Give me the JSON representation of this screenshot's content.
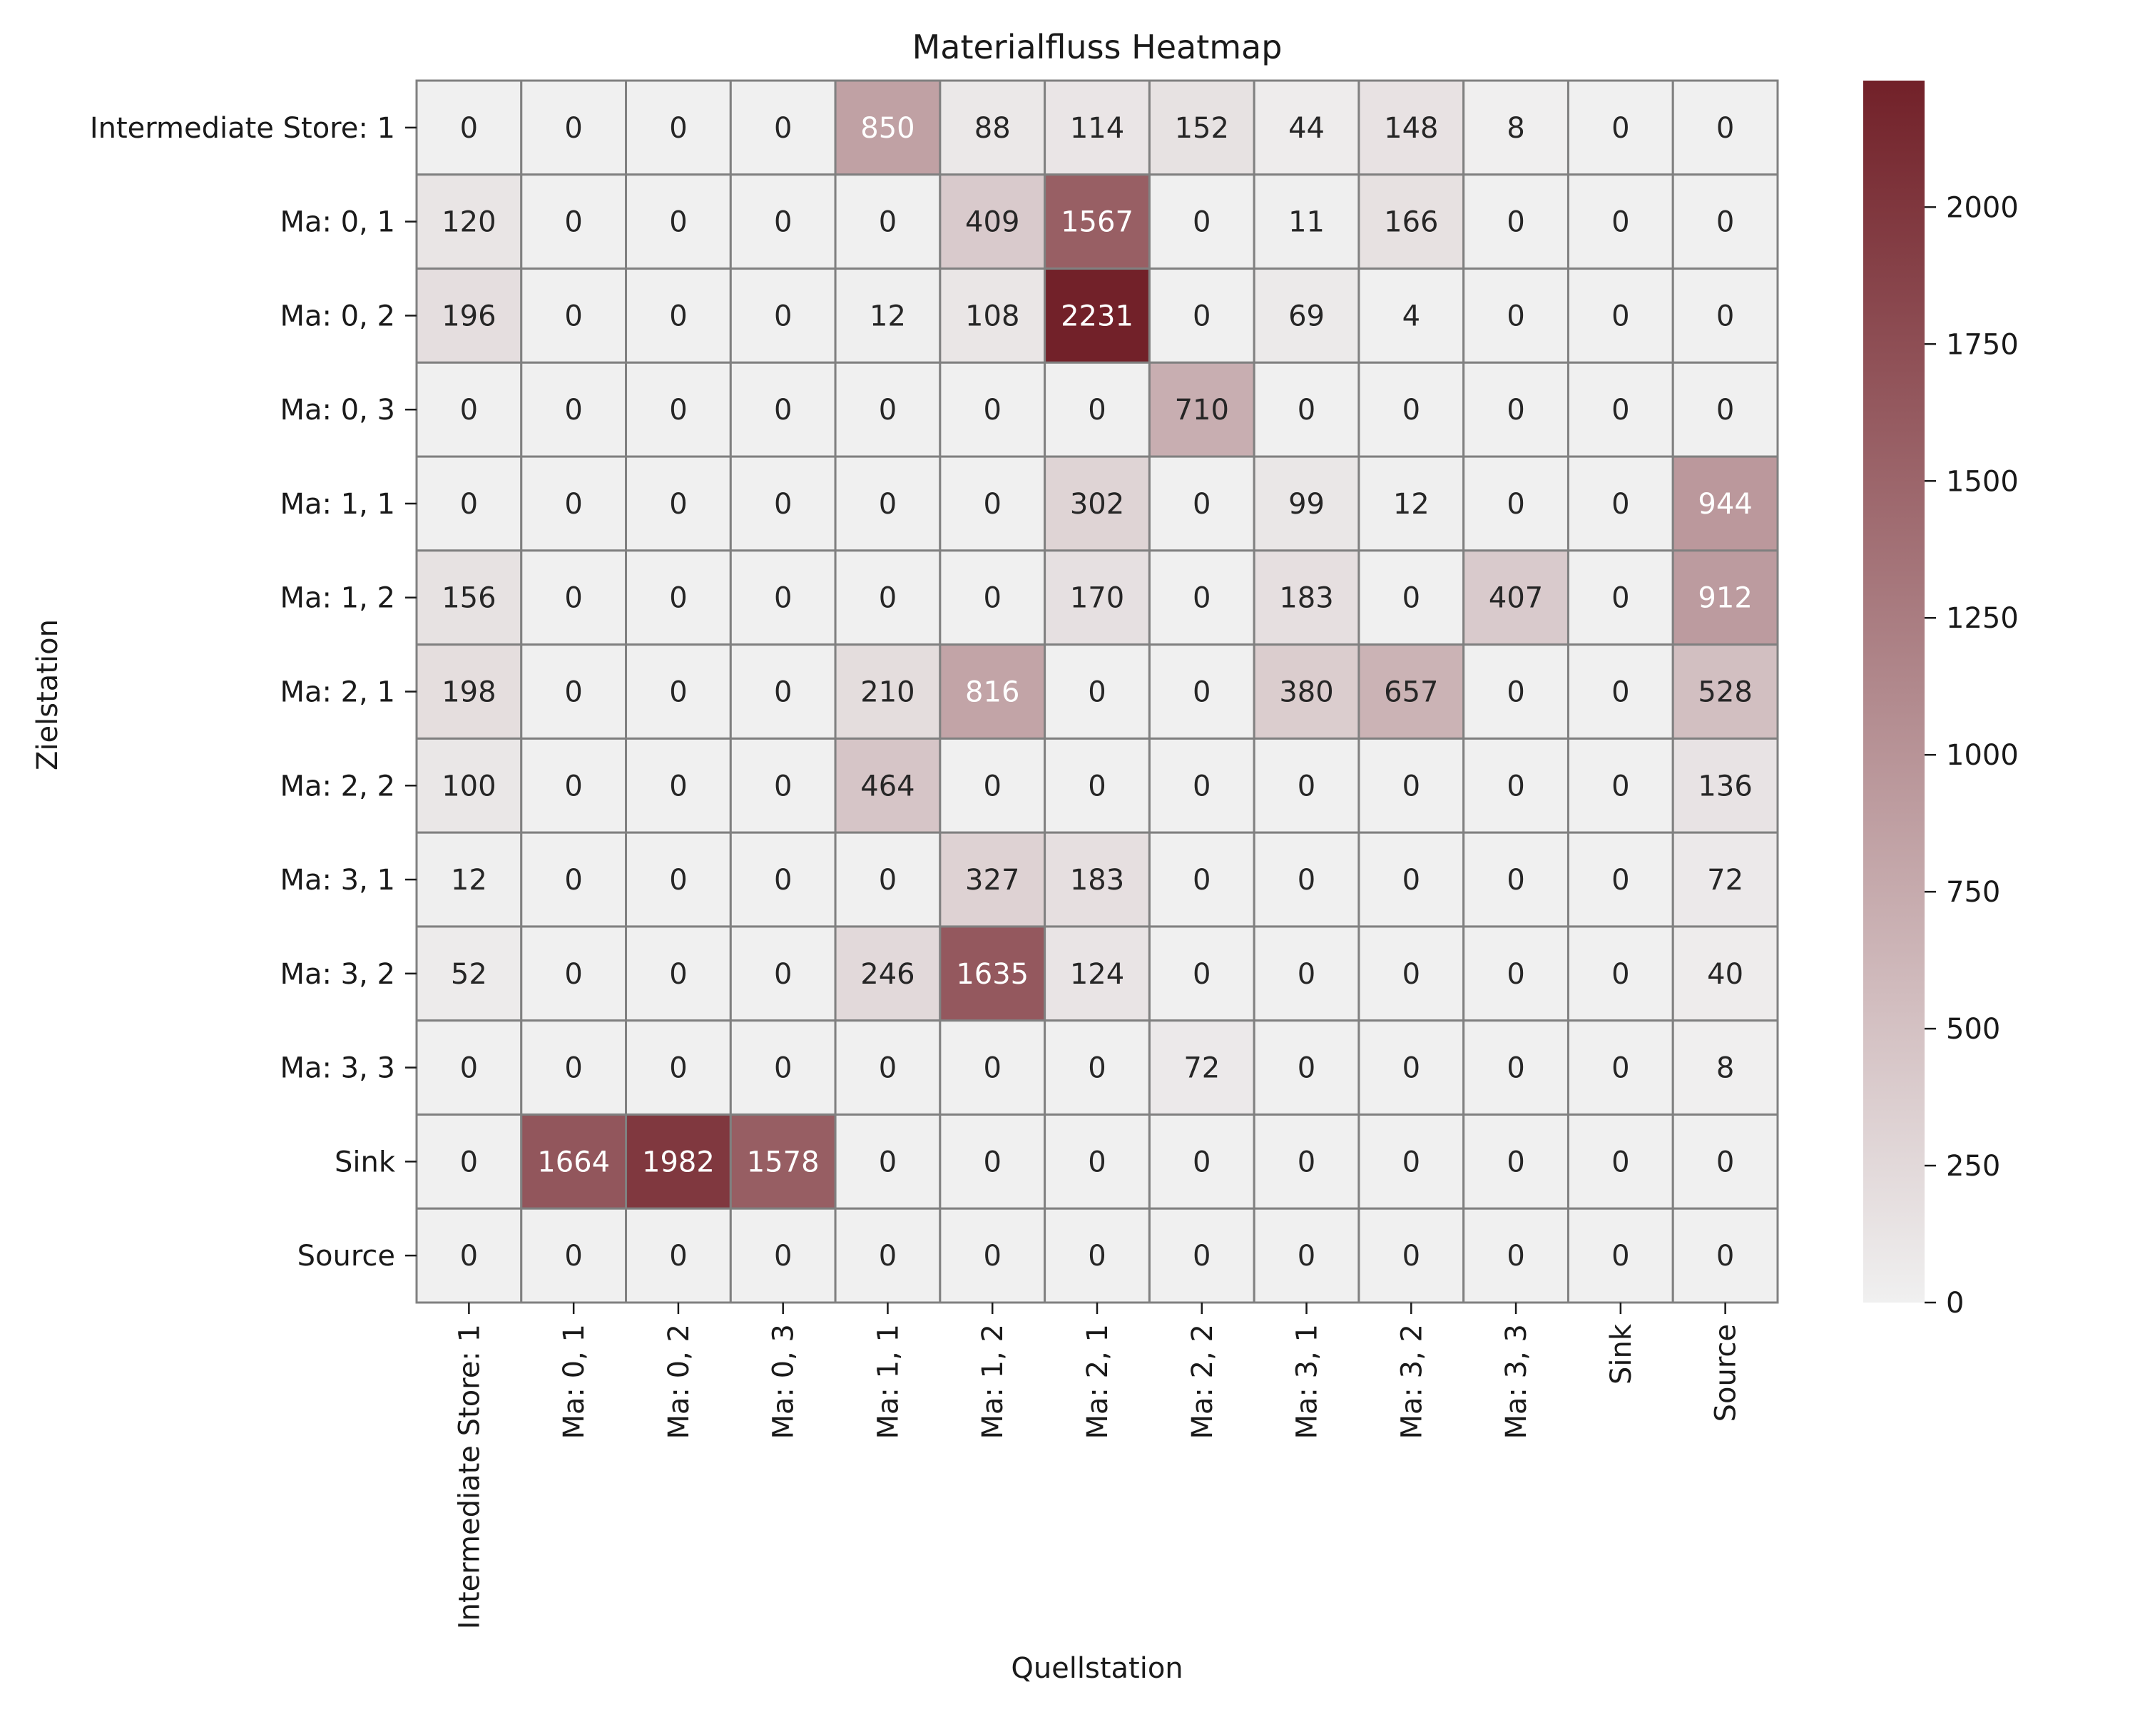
{
  "chart_data": {
    "type": "heatmap",
    "title": "Materialfluss Heatmap",
    "xlabel": "Quellstation",
    "ylabel": "Zielstation",
    "x_categories": [
      "Intermediate Store: 1",
      "Ma: 0, 1",
      "Ma: 0, 2",
      "Ma: 0, 3",
      "Ma: 1, 1",
      "Ma: 1, 2",
      "Ma: 2, 1",
      "Ma: 2, 2",
      "Ma: 3, 1",
      "Ma: 3, 2",
      "Ma: 3, 3",
      "Sink",
      "Source"
    ],
    "y_categories": [
      "Intermediate Store: 1",
      "Ma: 0, 1",
      "Ma: 0, 2",
      "Ma: 0, 3",
      "Ma: 1, 1",
      "Ma: 1, 2",
      "Ma: 2, 1",
      "Ma: 2, 2",
      "Ma: 3, 1",
      "Ma: 3, 2",
      "Ma: 3, 3",
      "Sink",
      "Source"
    ],
    "values": [
      [
        0,
        0,
        0,
        0,
        850,
        88,
        114,
        152,
        44,
        148,
        8,
        0,
        0
      ],
      [
        120,
        0,
        0,
        0,
        0,
        409,
        1567,
        0,
        11,
        166,
        0,
        0,
        0
      ],
      [
        196,
        0,
        0,
        0,
        12,
        108,
        2231,
        0,
        69,
        4,
        0,
        0,
        0
      ],
      [
        0,
        0,
        0,
        0,
        0,
        0,
        0,
        710,
        0,
        0,
        0,
        0,
        0
      ],
      [
        0,
        0,
        0,
        0,
        0,
        0,
        302,
        0,
        99,
        12,
        0,
        0,
        944
      ],
      [
        156,
        0,
        0,
        0,
        0,
        0,
        170,
        0,
        183,
        0,
        407,
        0,
        912
      ],
      [
        198,
        0,
        0,
        0,
        210,
        816,
        0,
        0,
        380,
        657,
        0,
        0,
        528
      ],
      [
        100,
        0,
        0,
        0,
        464,
        0,
        0,
        0,
        0,
        0,
        0,
        0,
        136
      ],
      [
        12,
        0,
        0,
        0,
        0,
        327,
        183,
        0,
        0,
        0,
        0,
        0,
        72
      ],
      [
        52,
        0,
        0,
        0,
        246,
        1635,
        124,
        0,
        0,
        0,
        0,
        0,
        40
      ],
      [
        0,
        0,
        0,
        0,
        0,
        0,
        0,
        72,
        0,
        0,
        0,
        0,
        8
      ],
      [
        0,
        1664,
        1982,
        1578,
        0,
        0,
        0,
        0,
        0,
        0,
        0,
        0,
        0
      ],
      [
        0,
        0,
        0,
        0,
        0,
        0,
        0,
        0,
        0,
        0,
        0,
        0,
        0
      ]
    ],
    "colorbar": {
      "range": [
        0,
        2231
      ],
      "ticks": [
        0,
        250,
        500,
        750,
        1000,
        1250,
        1500,
        1750,
        2000
      ],
      "color_low": "#f0f0f0",
      "color_high": "#722129"
    },
    "cell_border_color": "#808080"
  }
}
